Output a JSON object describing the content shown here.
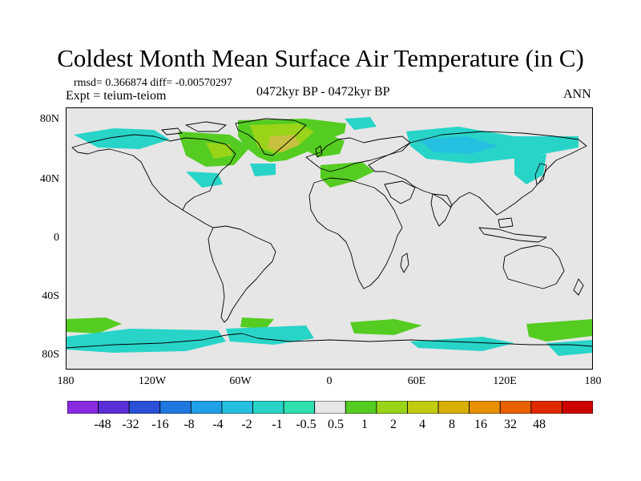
{
  "title": "Coldest Month Mean Surface Air Temperature (in C)",
  "stats_line": "rmsd= 0.366874 diff= -0.00570297",
  "expt_line": "Expt = teium-teiom",
  "period_line": "0472kyr BP - 0472kyr BP",
  "season_label": "ANN",
  "y_ticks": [
    "80N",
    "40N",
    "0",
    "40S",
    "80S"
  ],
  "x_ticks": [
    "180",
    "120W",
    "60W",
    "0",
    "60E",
    "120E",
    "180"
  ],
  "colorbar": {
    "labels": [
      "-48",
      "-32",
      "-16",
      "-8",
      "-4",
      "-2",
      "-1",
      "-0.5",
      "0.5",
      "1",
      "2",
      "4",
      "8",
      "16",
      "32",
      "48"
    ],
    "colors": [
      "#8a2be2",
      "#5b2fd6",
      "#2a50d8",
      "#1f78e0",
      "#1fa0e8",
      "#25c0e0",
      "#28d4c8",
      "#30e0b0",
      "#e6e6e6",
      "#55cc22",
      "#99d418",
      "#c0cc10",
      "#d8b000",
      "#e89000",
      "#e86000",
      "#e02800",
      "#cc0000"
    ]
  },
  "map_colors": {
    "background": "#e6e6e6",
    "pos_small": "#55cc22",
    "pos_medium": "#99d418",
    "pos_large": "#c8c040",
    "neg_small": "#28d4c8",
    "neg_medium": "#25c0e0"
  }
}
